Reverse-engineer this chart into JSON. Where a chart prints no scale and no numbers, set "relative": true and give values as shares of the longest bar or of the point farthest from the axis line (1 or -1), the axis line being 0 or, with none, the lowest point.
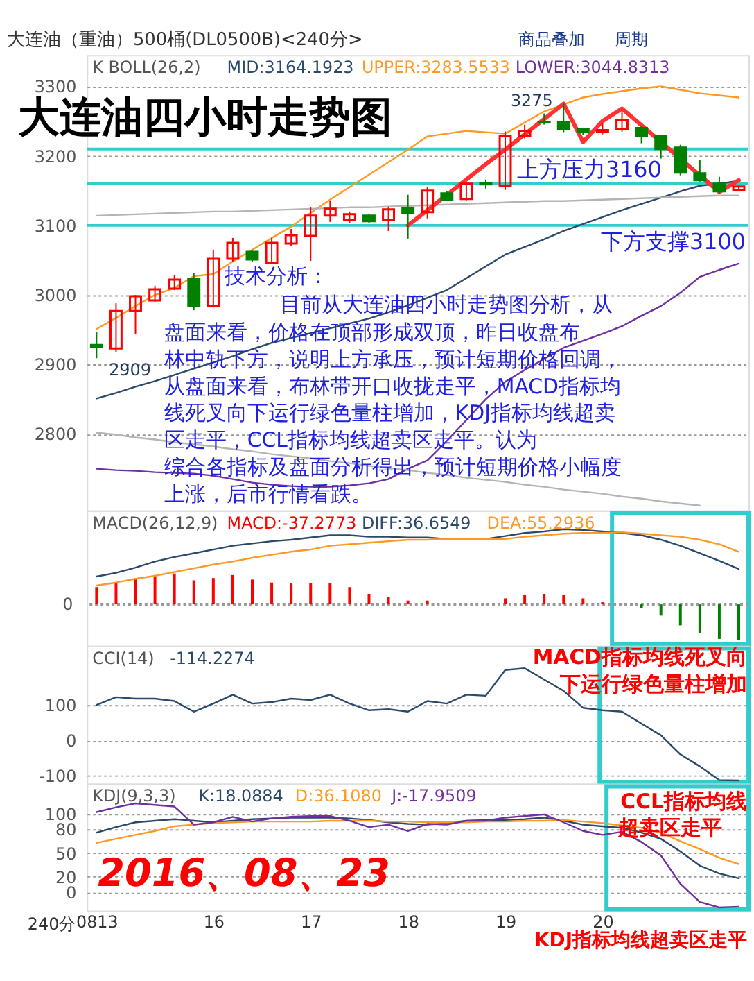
{
  "chart_data": [
    {
      "type": "candlestick",
      "title": "大连油（重油）500桶(DL0500B)<240分>",
      "legend_title": "K  BOLL(26,2)",
      "legend": "top",
      "grid": "y",
      "tick_labels": "y",
      "categories": [
        "0813",
        null,
        null,
        null,
        null,
        null,
        "16",
        null,
        null,
        null,
        null,
        "17",
        null,
        null,
        null,
        null,
        "18",
        null,
        null,
        null,
        null,
        "19",
        null,
        null,
        null,
        null,
        "20",
        null,
        null,
        null,
        null,
        null,
        null,
        null
      ],
      "ylim": [
        2690,
        3345
      ],
      "yticks": [
        2800,
        2900,
        3000,
        3100,
        3200,
        3300
      ],
      "ohlc": [
        [
          2928,
          2947,
          2909,
          2925
        ],
        [
          2923,
          2988,
          2918,
          2977
        ],
        [
          2977,
          3000,
          2944,
          2998
        ],
        [
          2992,
          3013,
          2990,
          3008
        ],
        [
          3009,
          3028,
          3007,
          3022
        ],
        [
          3023,
          3032,
          2978,
          2984
        ],
        [
          2984,
          3065,
          2982,
          3052
        ],
        [
          3052,
          3082,
          3048,
          3075
        ],
        [
          3062,
          3065,
          3048,
          3051
        ],
        [
          3046,
          3082,
          3044,
          3075
        ],
        [
          3074,
          3095,
          3070,
          3086
        ],
        [
          3085,
          3126,
          3049,
          3114
        ],
        [
          3114,
          3135,
          3105,
          3124
        ],
        [
          3108,
          3120,
          3103,
          3116
        ],
        [
          3114,
          3117,
          3103,
          3106
        ],
        [
          3108,
          3127,
          3092,
          3123
        ],
        [
          3125,
          3144,
          3081,
          3118
        ],
        [
          3119,
          3155,
          3110,
          3150
        ],
        [
          3146,
          3149,
          3135,
          3137
        ],
        [
          3138,
          3161,
          3136,
          3160
        ],
        [
          3161,
          3166,
          3153,
          3159
        ],
        [
          3157,
          3235,
          3151,
          3228
        ],
        [
          3228,
          3245,
          3225,
          3236
        ],
        [
          3249,
          3261,
          3245,
          3248
        ],
        [
          3248,
          3275,
          3234,
          3238
        ],
        [
          3238,
          3240,
          3230,
          3234
        ],
        [
          3234,
          3247,
          3231,
          3237
        ],
        [
          3238,
          3263,
          3235,
          3251
        ],
        [
          3240,
          3243,
          3218,
          3228
        ],
        [
          3228,
          3230,
          3196,
          3210
        ],
        [
          3212,
          3216,
          3172,
          3176
        ],
        [
          3175,
          3194,
          3163,
          3165
        ],
        [
          3160,
          3170,
          3145,
          3149
        ],
        [
          3151,
          3157,
          3150,
          3156
        ]
      ],
      "colors": [
        "#008000",
        "#ff0000",
        "#ff0000",
        "#ff0000",
        "#ff0000",
        "#008000",
        "#ff0000",
        "#ff0000",
        "#008000",
        "#ff0000",
        "#ff0000",
        "#ff0000",
        "#ff0000",
        "#ff0000",
        "#008000",
        "#ff0000",
        "#008000",
        "#ff0000",
        "#008000",
        "#ff0000",
        "#008000",
        "#ff0000",
        "#ff0000",
        "#008000",
        "#008000",
        "#008000",
        "#ff0000",
        "#ff0000",
        "#008000",
        "#008000",
        "#008000",
        "#008000",
        "#008000",
        "#ff0000"
      ],
      "series": [
        {
          "type": "line",
          "name": "MID:3164.1923",
          "color": "#2b4a6b",
          "values": [
            2851,
            2859,
            2868,
            2876,
            2885,
            2894,
            2903,
            2912,
            2922,
            2931,
            2938,
            2945,
            2952,
            2959,
            2966,
            2975,
            2985,
            2996,
            3007,
            3024,
            3041,
            3058,
            3069,
            3080,
            3092,
            3102,
            3112,
            3122,
            3131,
            3140,
            3149,
            3157,
            3160,
            3164
          ]
        },
        {
          "type": "line",
          "name": "UPPER:3283.5533",
          "color": "#ff9922",
          "values": [
            2951,
            2967,
            2984,
            3000,
            3010,
            3027,
            3030,
            3048,
            3065,
            3082,
            3098,
            3118,
            3137,
            3155,
            3173,
            3191,
            3209,
            3228,
            3232,
            3236,
            3234,
            3232,
            3248,
            3264,
            3274,
            3284,
            3289,
            3293,
            3297,
            3300,
            3295,
            3290,
            3287,
            3284
          ]
        },
        {
          "type": "line",
          "name": "LOWER:3044.8313",
          "color": "#7030a0",
          "values": [
            2750,
            2748,
            2747,
            2745,
            2744,
            2743,
            2740,
            2735,
            2730,
            2727,
            2725,
            2724,
            2724,
            2726,
            2729,
            2735,
            2750,
            2762,
            2790,
            2820,
            2850,
            2875,
            2892,
            2908,
            2924,
            2934,
            2944,
            2955,
            2970,
            2984,
            3003,
            3026,
            3036,
            3045
          ]
        },
        {
          "type": "line",
          "color": "#b4b4b4",
          "values": [
            3114,
            3115,
            3116,
            3117,
            3118,
            3119,
            3120,
            3120,
            3121,
            3122,
            3123,
            3124,
            3125,
            3126,
            3126,
            3127,
            3128,
            3129,
            3130,
            3131,
            3132,
            3133,
            3134,
            3135,
            3135,
            3136,
            3137,
            3138,
            3139,
            3140,
            3141,
            3142,
            3143,
            3143
          ]
        },
        {
          "type": "line",
          "color": "#b4b4b4",
          "values": [
            2802,
            2799,
            2795,
            2792,
            2788,
            2785,
            2782,
            2778,
            2775,
            2771,
            2768,
            2765,
            2761,
            2758,
            2754,
            2751,
            2748,
            2744,
            2741,
            2737,
            2734,
            2731,
            2727,
            2724,
            2720,
            2717,
            2714,
            2710,
            2707,
            2703,
            2700,
            2697,
            null,
            null
          ]
        },
        {
          "type": "line",
          "color": "#ff3333",
          "values": [
            null,
            null,
            null,
            null,
            null,
            null,
            null,
            null,
            null,
            null,
            null,
            null,
            null,
            null,
            null,
            null,
            3100,
            3122,
            3144,
            3166,
            3188,
            3209,
            3231,
            3253,
            3275,
            3220,
            3250,
            3268,
            3244,
            3220,
            3196,
            3172,
            3148,
            3165
          ]
        }
      ],
      "ref_lines": [
        {
          "axis": "y",
          "value": 3210,
          "color": "#33cccc"
        },
        {
          "axis": "y",
          "value": 3160,
          "label": "上方压力3160",
          "color": "#33cccc"
        },
        {
          "axis": "y",
          "value": 3100,
          "label": "下方支撑3100",
          "color": "#33cccc"
        }
      ],
      "annotations": [
        "商品叠加",
        "周期",
        "大连油四小时走势图",
        "技术分析：",
        "目前从大连油四小时走势图分析，从",
        "盘面来看，价格在顶部形成双顶，昨日收盘布",
        "林中轨下方，说明上方承压，预计短期价格回调，",
        "从盘面来看，布林带开口收拢走平，MACD指标均",
        "线死叉向下运行绿色量柱增加，KDJ指标均线超卖",
        "区走平，CCL指标均线超卖区走平。认为",
        "综合各指标及盘面分析得出，预计短期价格小幅度",
        "上涨，后市行情看跌。",
        "3275",
        "2909"
      ]
    },
    {
      "type": "bar",
      "legend_title": "MACD(26,12,9)",
      "legend": "top left",
      "tick_labels": false,
      "relative": true,
      "ref_lines": [
        {
          "axis": "y",
          "value": 0,
          "color": "#999999",
          "line_style": "dotted"
        }
      ],
      "categories": [
        "0813",
        null,
        null,
        null,
        null,
        null,
        "16",
        null,
        null,
        null,
        null,
        "17",
        null,
        null,
        null,
        null,
        "18",
        null,
        null,
        null,
        null,
        "19",
        null,
        null,
        null,
        null,
        "20",
        null,
        null,
        null,
        null,
        null,
        null,
        null
      ],
      "annotations": [
        "0"
      ],
      "series": [
        {
          "type": "bar",
          "name": "MACD:-37.2773",
          "color": "#ff0000",
          "values": [
            0.23,
            0.29,
            0.34,
            0.39,
            0.41,
            0.32,
            0.35,
            0.39,
            0.33,
            0.29,
            0.28,
            0.28,
            0.28,
            0.23,
            0.14,
            0.1,
            0.05,
            0.05,
            0.01,
            0.01,
            0.01,
            0.08,
            0.13,
            0.14,
            0.13,
            0.08,
            0.03,
            0.01,
            -0.05,
            -0.15,
            -0.28,
            -0.38,
            -0.46,
            -0.47
          ],
          "colors": [
            "#ff0000",
            "#ff0000",
            "#ff0000",
            "#ff0000",
            "#ff0000",
            "#ff0000",
            "#ff0000",
            "#ff0000",
            "#ff0000",
            "#ff0000",
            "#ff0000",
            "#ff0000",
            "#ff0000",
            "#ff0000",
            "#ff0000",
            "#ff0000",
            "#ff0000",
            "#ff0000",
            "#ff0000",
            "#ff0000",
            "#ff0000",
            "#ff0000",
            "#ff0000",
            "#ff0000",
            "#ff0000",
            "#ff0000",
            "#ff0000",
            "#ff0000",
            "#008000",
            "#008000",
            "#008000",
            "#008000",
            "#008000",
            "#008000"
          ]
        },
        {
          "type": "line",
          "name": "DIFF:36.6549",
          "color": "#2b4a6b",
          "values": [
            0.37,
            0.42,
            0.49,
            0.57,
            0.63,
            0.68,
            0.73,
            0.78,
            0.81,
            0.84,
            0.86,
            0.89,
            0.92,
            0.92,
            0.9,
            0.9,
            0.89,
            0.89,
            0.87,
            0.87,
            0.87,
            0.91,
            0.95,
            0.97,
            1,
            0.99,
            0.97,
            0.95,
            0.92,
            0.86,
            0.78,
            0.68,
            0.58,
            0.47
          ]
        },
        {
          "type": "line",
          "name": "DEA:55.2936",
          "color": "#ff9922",
          "values": [
            0.25,
            0.29,
            0.34,
            0.38,
            0.43,
            0.48,
            0.53,
            0.57,
            0.62,
            0.66,
            0.7,
            0.73,
            0.78,
            0.8,
            0.82,
            0.84,
            0.86,
            0.86,
            0.87,
            0.87,
            0.87,
            0.87,
            0.9,
            0.92,
            0.94,
            0.95,
            0.95,
            0.96,
            0.94,
            0.92,
            0.9,
            0.86,
            0.8,
            0.7
          ]
        }
      ]
    },
    {
      "type": "line",
      "legend_title": "CCI(14)",
      "legend": "top left",
      "grid": "y",
      "tick_labels": "y",
      "categories": [
        "0813",
        null,
        null,
        null,
        null,
        null,
        "16",
        null,
        null,
        null,
        null,
        "17",
        null,
        null,
        null,
        null,
        "18",
        null,
        null,
        null,
        null,
        "19",
        null,
        null,
        null,
        null,
        "20",
        null,
        null,
        null,
        null,
        null,
        null,
        null
      ],
      "ylim": [
        -123,
        268
      ],
      "yticks": [
        -100,
        0,
        100
      ],
      "series": [
        {
          "type": "line",
          "name": "-114.2274",
          "color": "#2b4a6b",
          "values": [
            100,
            122,
            118,
            118,
            111,
            81,
            104,
            129,
            104,
            108,
            118,
            114,
            129,
            104,
            85,
            88,
            81,
            111,
            104,
            129,
            126,
            199,
            204,
            172,
            140,
            92,
            85,
            81,
            47,
            14,
            -40,
            -74,
            -113,
            -114
          ]
        }
      ],
      "annotations": [
        "MACD指标均线死叉向",
        "下运行绿色量柱增加"
      ]
    },
    {
      "type": "line",
      "legend_title": "KDJ(9,3,3)",
      "legend": "top left",
      "grid": "y",
      "xlabel": "240分",
      "categories": [
        "0813",
        null,
        null,
        null,
        null,
        null,
        "16",
        null,
        null,
        null,
        null,
        "17",
        null,
        null,
        null,
        null,
        "18",
        null,
        null,
        null,
        null,
        "19",
        null,
        null,
        null,
        null,
        "20",
        null,
        null,
        null,
        null,
        null,
        null,
        null
      ],
      "ylim": [
        -23,
        138
      ],
      "yticks": [
        0,
        20,
        50,
        80,
        100
      ],
      "series": [
        {
          "type": "line",
          "name": "K:18.0884",
          "color": "#2b4a6b",
          "values": [
            76,
            83,
            89,
            91,
            93,
            91,
            89,
            91,
            93,
            94,
            95,
            95,
            95,
            94,
            92,
            89,
            87,
            86,
            88,
            91,
            92,
            92,
            93,
            95,
            91,
            86,
            84,
            82,
            76,
            68,
            52,
            34,
            24,
            18
          ]
        },
        {
          "type": "line",
          "name": "D:36.1080",
          "color": "#ff9922",
          "values": [
            63,
            68,
            73,
            78,
            84,
            86,
            88,
            89,
            90,
            90,
            90,
            90,
            91,
            91,
            91,
            90,
            90,
            89,
            89,
            89,
            90,
            90,
            91,
            91,
            92,
            90,
            88,
            85,
            82,
            76,
            65,
            55,
            44,
            36
          ]
        },
        {
          "type": "line",
          "name": "J:-17.9509",
          "color": "#7030a0",
          "values": [
            102,
            108,
            113,
            111,
            109,
            86,
            89,
            96,
            90,
            94,
            96,
            97,
            97,
            91,
            83,
            86,
            78,
            87,
            86,
            91,
            91,
            95,
            97,
            99,
            89,
            78,
            73,
            77,
            64,
            47,
            11,
            -12,
            -19,
            -18
          ]
        }
      ],
      "annotations": [
        "CCL指标均线",
        "超卖区走平",
        "2016、08、23",
        "KDJ指标均线超卖区走平"
      ]
    }
  ]
}
